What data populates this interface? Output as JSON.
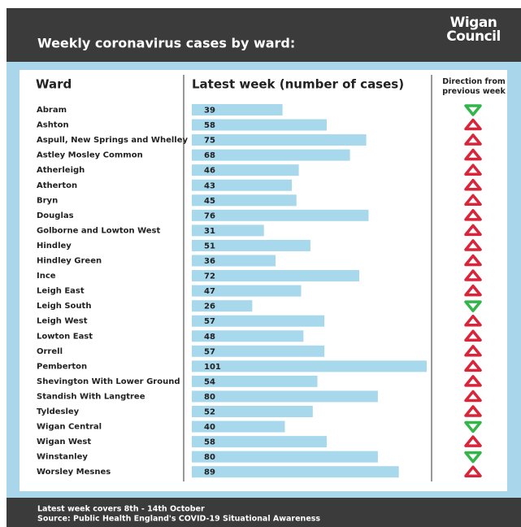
{
  "chart_data": {
    "type": "bar",
    "title": "Weekly coronavirus cases by ward:",
    "logo": "Wigan Council",
    "column_headers": [
      "Ward",
      "Latest week (number of cases)",
      "Direction from previous week"
    ],
    "categories": [
      "Abram",
      "Ashton",
      "Aspull, New Springs and Whelley",
      "Astley Mosley Common",
      "Atherleigh",
      "Atherton",
      "Bryn",
      "Douglas",
      "Golborne and Lowton West",
      "Hindley",
      "Hindley Green",
      "Ince",
      "Leigh East",
      "Leigh South",
      "Leigh West",
      "Lowton East",
      "Orrell",
      "Pemberton",
      "Shevington With Lower Ground",
      "Standish With Langtree",
      "Tyldesley",
      "Wigan Central",
      "Wigan West",
      "Winstanley",
      "Worsley Mesnes"
    ],
    "values": [
      39,
      58,
      75,
      68,
      46,
      43,
      45,
      76,
      31,
      51,
      36,
      72,
      47,
      26,
      57,
      48,
      57,
      101,
      54,
      80,
      52,
      40,
      58,
      80,
      89
    ],
    "directions": [
      "down",
      "up",
      "up",
      "up",
      "up",
      "up",
      "up",
      "up",
      "up",
      "up",
      "up",
      "up",
      "up",
      "down",
      "up",
      "up",
      "up",
      "up",
      "up",
      "up",
      "up",
      "down",
      "up",
      "down",
      "up"
    ],
    "color": "#a8d8ec",
    "up_color": "#d9243a",
    "down_color": "#33b54a",
    "footnotes": [
      "Latest week covers 8th - 14th October",
      "Source: Public Health England's COVID-19 Situational Awareness"
    ]
  }
}
